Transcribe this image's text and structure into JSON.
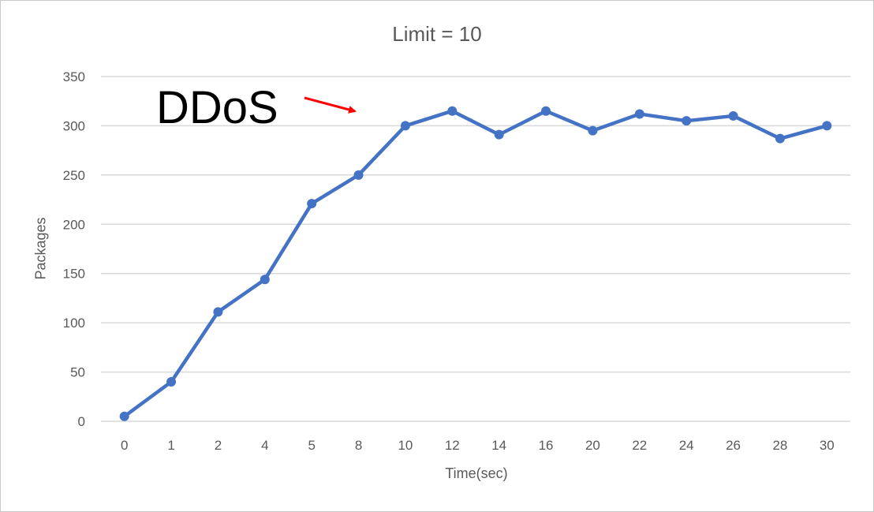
{
  "chart_data": {
    "type": "line",
    "title": "Limit = 10",
    "xlabel": "Time(sec)",
    "ylabel": "Packages",
    "categories": [
      "0",
      "1",
      "2",
      "4",
      "5",
      "8",
      "10",
      "12",
      "14",
      "16",
      "20",
      "22",
      "24",
      "26",
      "28",
      "30"
    ],
    "series": [
      {
        "values": [
          5,
          40,
          111,
          144,
          221,
          250,
          300,
          315,
          291,
          315,
          295,
          312,
          305,
          310,
          287,
          300
        ]
      }
    ],
    "ylim": [
      0,
      350
    ],
    "yticks": [
      0,
      50,
      100,
      150,
      200,
      250,
      300,
      350
    ],
    "grid": true,
    "legend": "none",
    "annotation": {
      "text": "DDoS",
      "arrow_color": "#ff0000"
    },
    "line_color": "#4472c4",
    "grid_color": "#d9d9d9"
  }
}
